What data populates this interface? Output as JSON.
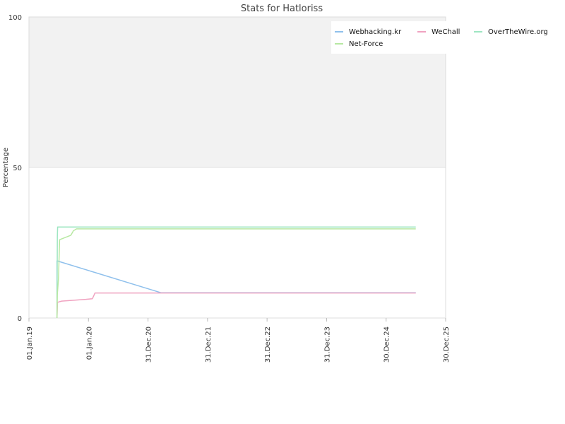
{
  "chart_data": {
    "type": "line",
    "title": "Stats for Hatloriss",
    "xlabel": "",
    "ylabel": "Percentage",
    "ylim": [
      0,
      100
    ],
    "yticks": [
      "0",
      "50",
      "100"
    ],
    "xlim": [
      "2019-01-01",
      "2025-12-30"
    ],
    "xticks": [
      {
        "date": "2019-01-01",
        "label": "01.Jan.19"
      },
      {
        "date": "2020-01-01",
        "label": "01.Jan.20"
      },
      {
        "date": "2020-12-31",
        "label": "31.Dec.20"
      },
      {
        "date": "2021-12-31",
        "label": "31.Dec.21"
      },
      {
        "date": "2022-12-31",
        "label": "31.Dec.22"
      },
      {
        "date": "2023-12-31",
        "label": "31.Dec.23"
      },
      {
        "date": "2024-12-30",
        "label": "30.Dec.24"
      },
      {
        "date": "2025-12-30",
        "label": "30.Dec.25"
      }
    ],
    "background_band": {
      "from": 50,
      "to": 100,
      "color": "#f2f2f2"
    },
    "legend_position": "top-right",
    "series": [
      {
        "name": "Webhacking.kr",
        "color": "#8fc0ec",
        "points": [
          [
            "2019-06-22",
            0
          ],
          [
            "2019-06-22",
            19
          ],
          [
            "2021-03-20",
            8.4
          ],
          [
            "2025-06-30",
            8.4
          ]
        ]
      },
      {
        "name": "WeChall",
        "color": "#f0a2c0",
        "points": [
          [
            "2019-06-22",
            0
          ],
          [
            "2019-06-25",
            5.2
          ],
          [
            "2019-07-20",
            5.6
          ],
          [
            "2019-12-15",
            6.2
          ],
          [
            "2020-01-25",
            6.4
          ],
          [
            "2020-02-01",
            7.2
          ],
          [
            "2020-02-10",
            8.3
          ],
          [
            "2025-06-30",
            8.3
          ]
        ]
      },
      {
        "name": "OverTheWire.org",
        "color": "#9ee6c2",
        "points": [
          [
            "2019-06-22",
            0
          ],
          [
            "2019-06-24",
            27
          ],
          [
            "2019-06-26",
            30.2
          ],
          [
            "2025-06-30",
            30.2
          ]
        ]
      },
      {
        "name": "Net-Force",
        "color": "#b7e8a2",
        "points": [
          [
            "2019-06-22",
            0
          ],
          [
            "2019-06-24",
            8
          ],
          [
            "2019-07-01",
            13
          ],
          [
            "2019-07-08",
            26
          ],
          [
            "2019-09-15",
            27.5
          ],
          [
            "2019-10-01",
            29
          ],
          [
            "2019-10-20",
            29.6
          ],
          [
            "2025-06-30",
            29.6
          ]
        ]
      }
    ]
  }
}
